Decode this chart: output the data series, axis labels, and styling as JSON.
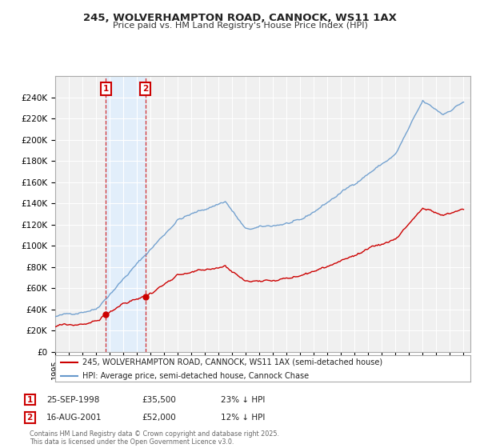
{
  "title": "245, WOLVERHAMPTON ROAD, CANNOCK, WS11 1AX",
  "subtitle": "Price paid vs. HM Land Registry's House Price Index (HPI)",
  "legend_line1": "245, WOLVERHAMPTON ROAD, CANNOCK, WS11 1AX (semi-detached house)",
  "legend_line2": "HPI: Average price, semi-detached house, Cannock Chase",
  "annotation1_date": "25-SEP-1998",
  "annotation1_price": "£35,500",
  "annotation1_hpi": "23% ↓ HPI",
  "annotation2_date": "16-AUG-2001",
  "annotation2_price": "£52,000",
  "annotation2_hpi": "12% ↓ HPI",
  "footer": "Contains HM Land Registry data © Crown copyright and database right 2025.\nThis data is licensed under the Open Government Licence v3.0.",
  "red_color": "#cc0000",
  "blue_color": "#6699cc",
  "shade_color": "#ddeeff",
  "annotation_box_color": "#cc0000",
  "background_color": "#ffffff",
  "chart_bg": "#f0f0f0",
  "grid_color": "#ffffff",
  "ylim": [
    0,
    260000
  ],
  "yticks": [
    0,
    20000,
    40000,
    60000,
    80000,
    100000,
    120000,
    140000,
    160000,
    180000,
    200000,
    220000,
    240000
  ],
  "ytick_labels": [
    "£0",
    "£20K",
    "£40K",
    "£60K",
    "£80K",
    "£100K",
    "£120K",
    "£140K",
    "£160K",
    "£180K",
    "£200K",
    "£220K",
    "£240K"
  ],
  "sale1_year": 1998.73,
  "sale1_price": 35500,
  "sale2_year": 2001.62,
  "sale2_price": 52000,
  "xmin": 1995,
  "xmax": 2025.5
}
